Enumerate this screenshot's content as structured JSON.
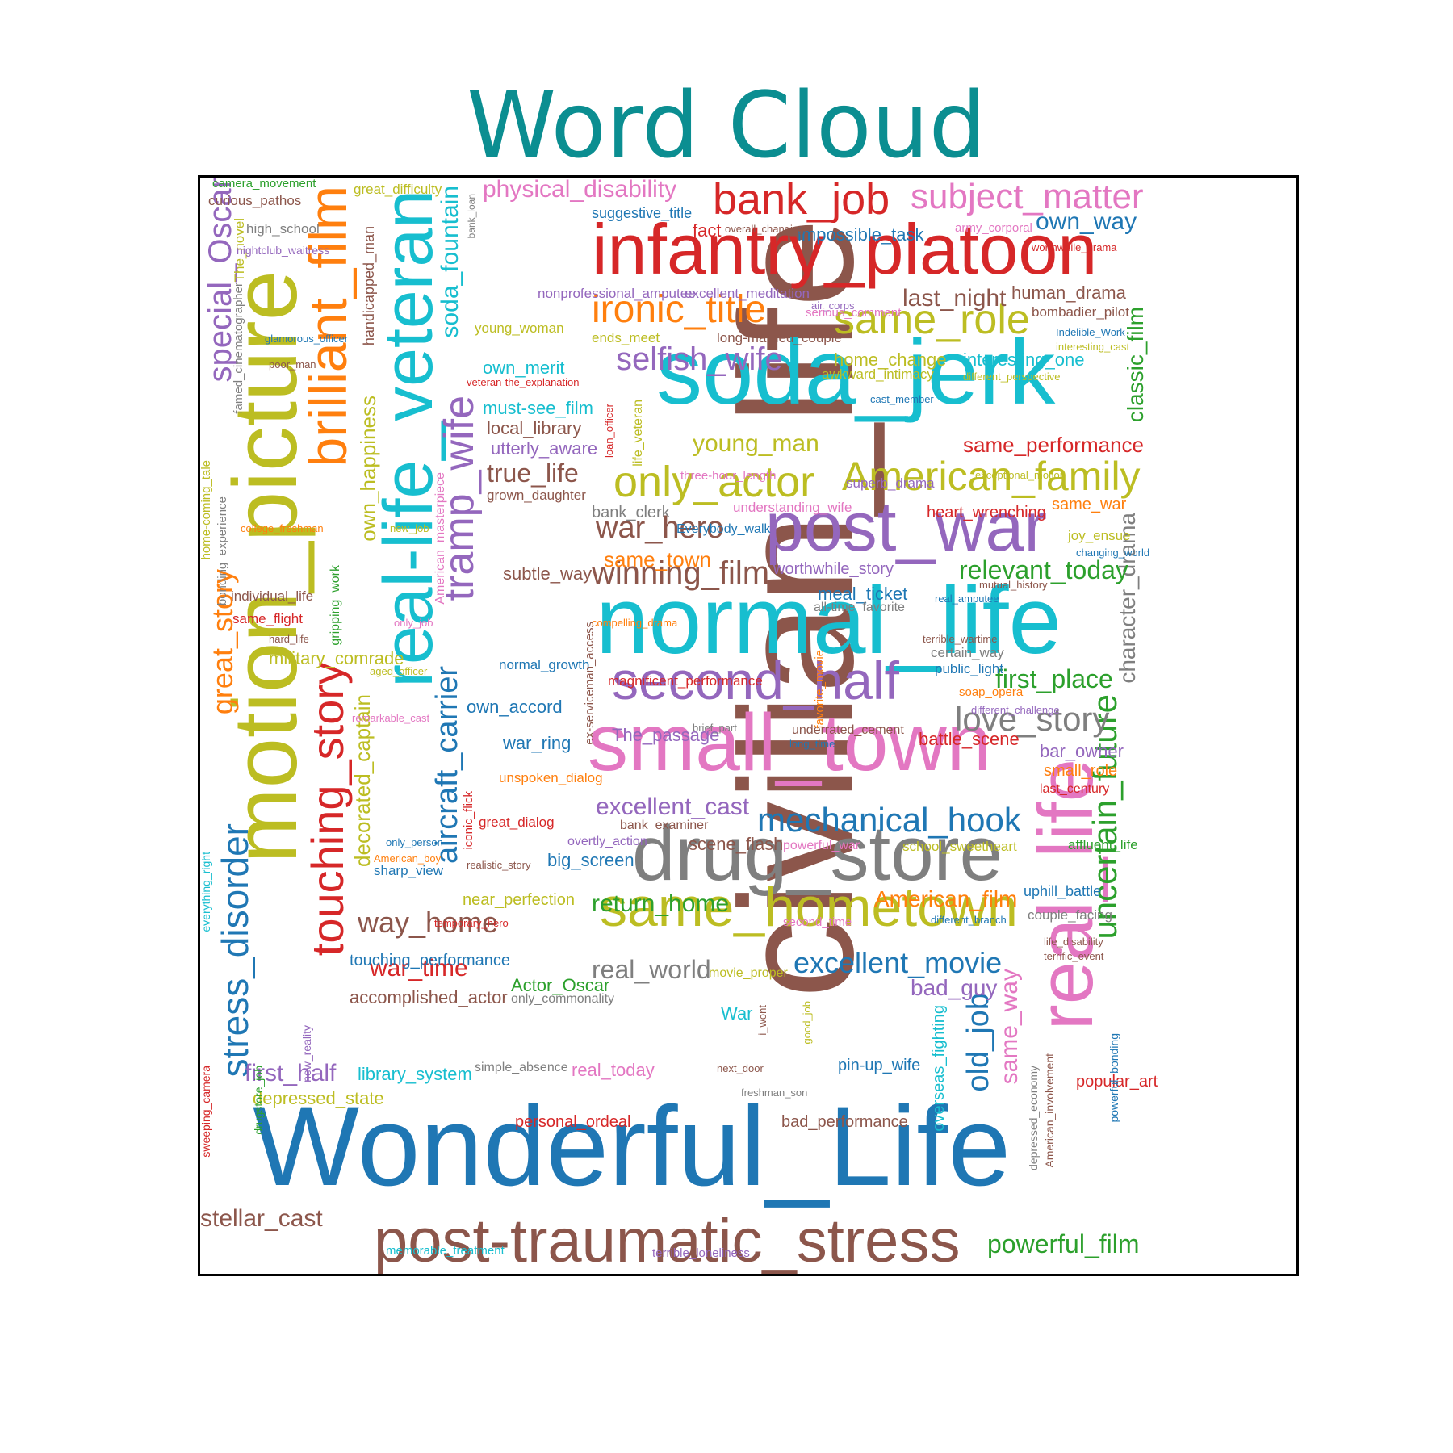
{
  "colors": {
    "title": "#0b8e91",
    "palette": {
      "blue": "#1f77b4",
      "orange": "#ff7f0e",
      "green": "#2ca02c",
      "red": "#d62728",
      "purple": "#9467bd",
      "brown": "#8c564b",
      "pink": "#e377c2",
      "gray": "#7f7f7f",
      "olive": "#bcbd22",
      "cyan": "#17becf"
    }
  },
  "chart_data": {
    "type": "wordcloud",
    "title": "Word Cloud",
    "words": [
      {
        "text": "civilian_life",
        "weight": 100,
        "color": "brown"
      },
      {
        "text": "Wonderful_Life",
        "weight": 68,
        "color": "blue"
      },
      {
        "text": "motion_picture",
        "weight": 62,
        "color": "olive"
      },
      {
        "text": "normal_life",
        "weight": 62,
        "color": "cyan"
      },
      {
        "text": "real-life_veteran",
        "weight": 60,
        "color": "cyan"
      },
      {
        "text": "soda_jerk",
        "weight": 60,
        "color": "cyan"
      },
      {
        "text": "small_town",
        "weight": 56,
        "color": "pink"
      },
      {
        "text": "infantry_platoon",
        "weight": 54,
        "color": "red"
      },
      {
        "text": "real_life",
        "weight": 52,
        "color": "pink"
      },
      {
        "text": "drug_store",
        "weight": 50,
        "color": "gray"
      },
      {
        "text": "post_war",
        "weight": 48,
        "color": "purple"
      },
      {
        "text": "post-traumatic_stress",
        "weight": 44,
        "color": "brown"
      },
      {
        "text": "brilliant_film",
        "weight": 42,
        "color": "orange"
      },
      {
        "text": "same_hometown",
        "weight": 40,
        "color": "olive"
      },
      {
        "text": "second_half",
        "weight": 38,
        "color": "purple"
      },
      {
        "text": "touching_story",
        "weight": 34,
        "color": "red"
      },
      {
        "text": "tramp_wife",
        "weight": 32,
        "color": "purple"
      },
      {
        "text": "American_family",
        "weight": 32,
        "color": "olive"
      },
      {
        "text": "only_actor",
        "weight": 32,
        "color": "olive"
      },
      {
        "text": "bank_job",
        "weight": 32,
        "color": "red"
      },
      {
        "text": "stress_disorder",
        "weight": 30,
        "color": "blue"
      },
      {
        "text": "subject_matter",
        "weight": 30,
        "color": "pink"
      },
      {
        "text": "ironic_title",
        "weight": 30,
        "color": "orange"
      },
      {
        "text": "uncertain_future",
        "weight": 30,
        "color": "green"
      },
      {
        "text": "same_role",
        "weight": 30,
        "color": "olive"
      },
      {
        "text": "special_Oscar",
        "weight": 28,
        "color": "purple"
      },
      {
        "text": "aircraft_carrier",
        "weight": 28,
        "color": "blue"
      },
      {
        "text": "soda_fountain",
        "weight": 28,
        "color": "cyan"
      },
      {
        "text": "great_story",
        "weight": 26,
        "color": "orange"
      },
      {
        "text": "winning_film",
        "weight": 26,
        "color": "brown"
      },
      {
        "text": "selfish_wife",
        "weight": 26,
        "color": "purple"
      },
      {
        "text": "love_story",
        "weight": 26,
        "color": "gray"
      },
      {
        "text": "mechanical_hook",
        "weight": 26,
        "color": "blue"
      },
      {
        "text": "old_job",
        "weight": 24,
        "color": "blue"
      },
      {
        "text": "excellent_movie",
        "weight": 24,
        "color": "blue"
      },
      {
        "text": "war_hero",
        "weight": 24,
        "color": "brown"
      },
      {
        "text": "way_home",
        "weight": 24,
        "color": "brown"
      },
      {
        "text": "decorated_captain",
        "weight": 22,
        "color": "olive"
      },
      {
        "text": "character_drama",
        "weight": 22,
        "color": "gray"
      },
      {
        "text": "classic_film",
        "weight": 22,
        "color": "green"
      },
      {
        "text": "same_way",
        "weight": 22,
        "color": "pink"
      },
      {
        "text": "own_happiness",
        "weight": 20,
        "color": "olive"
      },
      {
        "text": "own_way",
        "weight": 20,
        "color": "blue"
      },
      {
        "text": "first_place",
        "weight": 20,
        "color": "green"
      },
      {
        "text": "true_life",
        "weight": 20,
        "color": "brown"
      },
      {
        "text": "relevant_today",
        "weight": 20,
        "color": "green"
      },
      {
        "text": "excellent_cast",
        "weight": 20,
        "color": "purple"
      },
      {
        "text": "return_home",
        "weight": 20,
        "color": "green"
      },
      {
        "text": "first_half",
        "weight": 20,
        "color": "purple"
      },
      {
        "text": "stellar_cast",
        "weight": 20,
        "color": "brown"
      },
      {
        "text": "powerful_film",
        "weight": 20,
        "color": "green"
      },
      {
        "text": "real_world",
        "weight": 20,
        "color": "gray"
      },
      {
        "text": "war_time",
        "weight": 20,
        "color": "red"
      },
      {
        "text": "last_night",
        "weight": 20,
        "color": "brown"
      },
      {
        "text": "young_man",
        "weight": 20,
        "color": "olive"
      },
      {
        "text": "same_performance",
        "weight": 18,
        "color": "red"
      },
      {
        "text": "American_film",
        "weight": 18,
        "color": "orange"
      },
      {
        "text": "bad_guy",
        "weight": 18,
        "color": "purple"
      },
      {
        "text": "same_town",
        "weight": 18,
        "color": "orange"
      },
      {
        "text": "physical_disability",
        "weight": 20,
        "color": "pink"
      },
      {
        "text": "impossible_task",
        "weight": 16,
        "color": "blue"
      },
      {
        "text": "interesting_one",
        "weight": 16,
        "color": "cyan"
      },
      {
        "text": "human_drama",
        "weight": 16,
        "color": "brown"
      },
      {
        "text": "overseas_fighting",
        "weight": 16,
        "color": "cyan"
      },
      {
        "text": "home_change",
        "weight": 14,
        "color": "olive"
      },
      {
        "text": "own_merit",
        "weight": 16,
        "color": "cyan"
      },
      {
        "text": "must-see_film",
        "weight": 16,
        "color": "cyan"
      },
      {
        "text": "local_library",
        "weight": 16,
        "color": "brown"
      },
      {
        "text": "utterly_aware",
        "weight": 16,
        "color": "purple"
      },
      {
        "text": "subtle_way",
        "weight": 16,
        "color": "brown"
      },
      {
        "text": "military_comrade",
        "weight": 16,
        "color": "olive"
      },
      {
        "text": "own_accord",
        "weight": 16,
        "color": "blue"
      },
      {
        "text": "war_ring",
        "weight": 16,
        "color": "blue"
      },
      {
        "text": "library_system",
        "weight": 16,
        "color": "cyan"
      },
      {
        "text": "depressed_state",
        "weight": 16,
        "color": "olive"
      },
      {
        "text": "touching_performance",
        "weight": 15,
        "color": "blue"
      },
      {
        "text": "accomplished_actor",
        "weight": 16,
        "color": "brown"
      },
      {
        "text": "Actor_Oscar",
        "weight": 16,
        "color": "green"
      },
      {
        "text": "big_screen",
        "weight": 16,
        "color": "blue"
      },
      {
        "text": "near_perfection",
        "weight": 15,
        "color": "olive"
      },
      {
        "text": "battle_scene",
        "weight": 16,
        "color": "red"
      },
      {
        "text": "bar_owner",
        "weight": 16,
        "color": "purple"
      },
      {
        "text": "small_role",
        "weight": 16,
        "color": "orange"
      },
      {
        "text": "meal_ticket",
        "weight": 16,
        "color": "blue"
      },
      {
        "text": "scene_flash",
        "weight": 16,
        "color": "brown"
      },
      {
        "text": "personal_ordeal",
        "weight": 16,
        "color": "red"
      },
      {
        "text": "bad_performance",
        "weight": 16,
        "color": "brown"
      },
      {
        "text": "pin-up_wife",
        "weight": 16,
        "color": "blue"
      },
      {
        "text": "popular_art",
        "weight": 15,
        "color": "red"
      },
      {
        "text": "heart_wrenching",
        "weight": 15,
        "color": "red"
      },
      {
        "text": "worthwhile_story",
        "weight": 15,
        "color": "purple"
      },
      {
        "text": "The_passage",
        "weight": 16,
        "color": "purple"
      },
      {
        "text": "bank_clerk",
        "weight": 15,
        "color": "gray"
      },
      {
        "text": "same_war",
        "weight": 15,
        "color": "orange"
      },
      {
        "text": "uphill_battle",
        "weight": 14,
        "color": "blue"
      },
      {
        "text": "suggestive_title",
        "weight": 14,
        "color": "blue"
      },
      {
        "text": "fact",
        "weight": 16,
        "color": "red"
      },
      {
        "text": "great_difficulty",
        "weight": 13,
        "color": "olive"
      },
      {
        "text": "curious_pathos",
        "weight": 13,
        "color": "brown"
      },
      {
        "text": "high_school",
        "weight": 13,
        "color": "gray"
      },
      {
        "text": "individual_life",
        "weight": 13,
        "color": "brown"
      },
      {
        "text": "same_flight",
        "weight": 13,
        "color": "red"
      },
      {
        "text": "grown_daughter",
        "weight": 13,
        "color": "brown"
      },
      {
        "text": "young_woman",
        "weight": 13,
        "color": "olive"
      },
      {
        "text": "ends_meet",
        "weight": 13,
        "color": "olive"
      },
      {
        "text": "awkward_intimacy",
        "weight": 13,
        "color": "olive"
      },
      {
        "text": "bombadier_pilot",
        "weight": 13,
        "color": "brown"
      },
      {
        "text": "excellent_meditation",
        "weight": 13,
        "color": "purple"
      },
      {
        "text": "nonprofessional_amputee",
        "weight": 13,
        "color": "purple"
      },
      {
        "text": "long-married_couple",
        "weight": 13,
        "color": "brown"
      },
      {
        "text": "understanding_wife",
        "weight": 13,
        "color": "pink"
      },
      {
        "text": "joy_ensue",
        "weight": 13,
        "color": "olive"
      },
      {
        "text": "magnificent_performance",
        "weight": 13,
        "color": "red"
      },
      {
        "text": "normal_growth",
        "weight": 13,
        "color": "blue"
      },
      {
        "text": "unspoken_dialog",
        "weight": 13,
        "color": "orange"
      },
      {
        "text": "great_dialog",
        "weight": 13,
        "color": "red"
      },
      {
        "text": "sharp_view",
        "weight": 13,
        "color": "blue"
      },
      {
        "text": "school_sweetheart",
        "weight": 13,
        "color": "olive"
      },
      {
        "text": "affluent_life",
        "weight": 13,
        "color": "green"
      },
      {
        "text": "couple_facing",
        "weight": 13,
        "color": "gray"
      },
      {
        "text": "certain_way",
        "weight": 13,
        "color": "gray"
      },
      {
        "text": "public_light",
        "weight": 13,
        "color": "blue"
      },
      {
        "text": "all-time_favorite",
        "weight": 12,
        "color": "gray"
      },
      {
        "text": "underrated_cement",
        "weight": 12,
        "color": "brown"
      },
      {
        "text": "memorable_treatment",
        "weight": 12,
        "color": "cyan"
      },
      {
        "text": "terrible_loneliness",
        "weight": 12,
        "color": "purple"
      },
      {
        "text": "simple_absence",
        "weight": 12,
        "color": "gray"
      },
      {
        "text": "real_today",
        "weight": 15,
        "color": "pink"
      },
      {
        "text": "overtly_action",
        "weight": 12,
        "color": "purple"
      },
      {
        "text": "powerful_war",
        "weight": 12,
        "color": "pink"
      },
      {
        "text": "bank_examiner",
        "weight": 12,
        "color": "brown"
      },
      {
        "text": "movie_proper",
        "weight": 12,
        "color": "olive"
      },
      {
        "text": "only_commonality",
        "weight": 12,
        "color": "gray"
      },
      {
        "text": "War",
        "weight": 14,
        "color": "cyan"
      },
      {
        "text": "handicapped_man",
        "weight": 13,
        "color": "brown"
      },
      {
        "text": "gripping_work",
        "weight": 11,
        "color": "green"
      },
      {
        "text": "American_masterpiece",
        "weight": 12,
        "color": "pink"
      },
      {
        "text": "ex-serviceman_access",
        "weight": 12,
        "color": "brown"
      },
      {
        "text": "life_veteran",
        "weight": 12,
        "color": "olive"
      },
      {
        "text": "favorite_movie",
        "weight": 12,
        "color": "orange"
      },
      {
        "text": "famed_cinematographer",
        "weight": 11,
        "color": "gray"
      },
      {
        "text": "The_novel",
        "weight": 12,
        "color": "olive"
      },
      {
        "text": "home-coming_tale",
        "weight": 11,
        "color": "olive"
      },
      {
        "text": "bonding_experience",
        "weight": 11,
        "color": "gray"
      },
      {
        "text": "everything_right",
        "weight": 11,
        "color": "cyan"
      },
      {
        "text": "sweeping_camera",
        "weight": 11,
        "color": "red"
      },
      {
        "text": "drugstore_job",
        "weight": 11,
        "color": "green"
      },
      {
        "text": "new_reality",
        "weight": 11,
        "color": "purple"
      },
      {
        "text": "iconic_flick",
        "weight": 11,
        "color": "red"
      },
      {
        "text": "depressed_economy",
        "weight": 11,
        "color": "gray"
      },
      {
        "text": "American_involvement",
        "weight": 11,
        "color": "brown"
      },
      {
        "text": "powerful_bonding",
        "weight": 11,
        "color": "blue"
      },
      {
        "text": "camera_movement",
        "weight": 11,
        "color": "green"
      },
      {
        "text": "nightclub_waitress",
        "weight": 10,
        "color": "purple"
      },
      {
        "text": "glamorous_officer",
        "weight": 10,
        "color": "blue"
      },
      {
        "text": "poor_man",
        "weight": 10,
        "color": "brown"
      },
      {
        "text": "veteran-the_explanation",
        "weight": 10,
        "color": "red"
      },
      {
        "text": "college_freshman",
        "weight": 10,
        "color": "orange"
      },
      {
        "text": "new_job",
        "weight": 10,
        "color": "olive"
      },
      {
        "text": "hard_life",
        "weight": 10,
        "color": "brown"
      },
      {
        "text": "only_job",
        "weight": 10,
        "color": "pink"
      },
      {
        "text": "aged_officer",
        "weight": 10,
        "color": "olive"
      },
      {
        "text": "remarkable_cast",
        "weight": 10,
        "color": "pink"
      },
      {
        "text": "compelling_drama",
        "weight": 10,
        "color": "orange"
      },
      {
        "text": "Everybody_walk",
        "weight": 12,
        "color": "blue"
      },
      {
        "text": "three-hour_length",
        "weight": 11,
        "color": "pink"
      },
      {
        "text": "superb_drama",
        "weight": 12,
        "color": "purple"
      },
      {
        "text": "exceptional_motion",
        "weight": 10,
        "color": "olive"
      },
      {
        "text": "changing_world",
        "weight": 10,
        "color": "blue"
      },
      {
        "text": "mutual_history",
        "weight": 10,
        "color": "brown"
      },
      {
        "text": "real_amputee",
        "weight": 10,
        "color": "blue"
      },
      {
        "text": "terrible_wartime",
        "weight": 10,
        "color": "brown"
      },
      {
        "text": "soap_opera",
        "weight": 11,
        "color": "orange"
      },
      {
        "text": "different_challenge",
        "weight": 10,
        "color": "purple"
      },
      {
        "text": "brief_part",
        "weight": 10,
        "color": "gray"
      },
      {
        "text": "long_time",
        "weight": 10,
        "color": "blue"
      },
      {
        "text": "last_century",
        "weight": 12,
        "color": "red"
      },
      {
        "text": "only_person",
        "weight": 10,
        "color": "blue"
      },
      {
        "text": "American_boy",
        "weight": 10,
        "color": "orange"
      },
      {
        "text": "realistic_story",
        "weight": 10,
        "color": "brown"
      },
      {
        "text": "temporary_hero",
        "weight": 10,
        "color": "red"
      },
      {
        "text": "second_time",
        "weight": 11,
        "color": "pink"
      },
      {
        "text": "different_branch",
        "weight": 10,
        "color": "blue"
      },
      {
        "text": "life_disability",
        "weight": 10,
        "color": "brown"
      },
      {
        "text": "terrific_event",
        "weight": 10,
        "color": "brown"
      },
      {
        "text": "i_wont",
        "weight": 10,
        "color": "brown"
      },
      {
        "text": "good_job",
        "weight": 10,
        "color": "olive"
      },
      {
        "text": "next_door",
        "weight": 10,
        "color": "brown"
      },
      {
        "text": "freshman_son",
        "weight": 10,
        "color": "gray"
      },
      {
        "text": "bank_loan",
        "weight": 9,
        "color": "gray"
      },
      {
        "text": "loan_officer",
        "weight": 10,
        "color": "red"
      },
      {
        "text": "overall_changing",
        "weight": 10,
        "color": "brown"
      },
      {
        "text": "air_corps",
        "weight": 10,
        "color": "purple"
      },
      {
        "text": "serious_comment",
        "weight": 11,
        "color": "pink"
      },
      {
        "text": "army_corporal",
        "weight": 11,
        "color": "pink"
      },
      {
        "text": "worthwhile_drama",
        "weight": 10,
        "color": "red"
      },
      {
        "text": "Indelible_Work",
        "weight": 10,
        "color": "blue"
      },
      {
        "text": "interesting_cast",
        "weight": 10,
        "color": "olive"
      },
      {
        "text": "different_perspective",
        "weight": 10,
        "color": "olive"
      },
      {
        "text": "cast_member",
        "weight": 10,
        "color": "blue"
      }
    ]
  }
}
